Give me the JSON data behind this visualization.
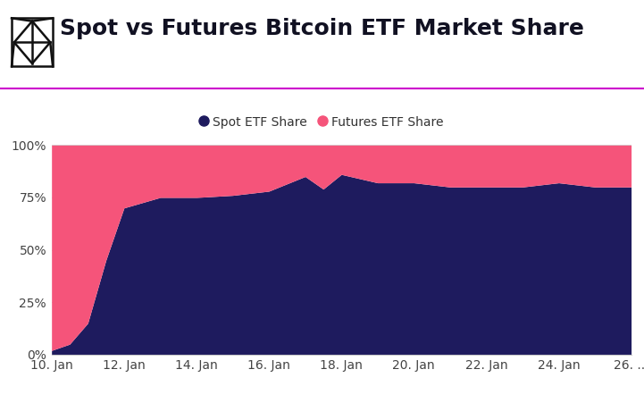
{
  "title": "Spot vs Futures Bitcoin ETF Market Share",
  "spot_color": "#1e1b5e",
  "futures_color": "#f5547a",
  "background_color": "#ffffff",
  "x_labels": [
    "10. Jan",
    "12. Jan",
    "14. Jan",
    "16. Jan",
    "18. Jan",
    "20. Jan",
    "22. Jan",
    "24. Jan",
    "26. ..."
  ],
  "x_tick_positions": [
    10,
    12,
    14,
    16,
    18,
    20,
    22,
    24,
    26
  ],
  "x_values": [
    10,
    10.5,
    11,
    11.5,
    12,
    13,
    14,
    15,
    16,
    17,
    17.5,
    18,
    19,
    20,
    21,
    22,
    23,
    24,
    25,
    26
  ],
  "spot_share": [
    2,
    5,
    15,
    45,
    70,
    75,
    75,
    76,
    78,
    85,
    79,
    86,
    82,
    82,
    80,
    80,
    80,
    82,
    80,
    80
  ],
  "ylim": [
    0,
    100
  ],
  "legend_spot": "Spot ETF Share",
  "legend_futures": "Futures ETF Share",
  "title_fontsize": 18,
  "tick_fontsize": 10,
  "legend_fontsize": 10,
  "line_color": "#cc00cc",
  "separator_line_y": 0.78,
  "logo_color": "#111111"
}
